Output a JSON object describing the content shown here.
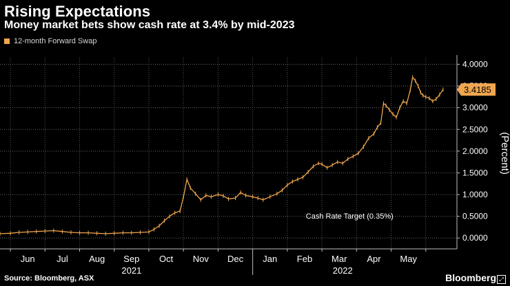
{
  "title": "Rising Expectations",
  "subtitle": "Money market bets show cash rate at 3.4% by mid-2023",
  "legend": {
    "label": "12-month Forward Swap",
    "color": "#f0a64f"
  },
  "source": "Source: Bloomberg, ASX",
  "brand": "Bloomberg",
  "brand_mark": "⤢",
  "chart_data": {
    "type": "line",
    "title": "Rising Expectations",
    "subtitle": "Money market bets show cash rate at 3.4% by mid-2023",
    "ylabel": "(Percent)",
    "xlabel": "",
    "ylim": [
      -0.25,
      4.15
    ],
    "yticks": [
      0.0,
      0.5,
      1.0,
      1.5,
      2.0,
      2.5,
      3.0,
      3.5,
      4.0
    ],
    "ytick_labels": [
      "0.0000",
      "0.5000",
      "1.0000",
      "1.5000",
      "2.0000",
      "2.5000",
      "3.0000",
      "3.5000",
      "4.0000"
    ],
    "xlim_months": [
      -0.3,
      11.9
    ],
    "month_labels": [
      {
        "label": "Jun",
        "x": 0.5
      },
      {
        "label": "Jul",
        "x": 1.5
      },
      {
        "label": "Aug",
        "x": 2.5
      },
      {
        "label": "Sep",
        "x": 3.5
      },
      {
        "label": "Oct",
        "x": 4.5
      },
      {
        "label": "Nov",
        "x": 5.5
      },
      {
        "label": "Dec",
        "x": 6.5
      },
      {
        "label": "Jan",
        "x": 7.5
      },
      {
        "label": "Feb",
        "x": 8.5
      },
      {
        "label": "Mar",
        "x": 9.5
      },
      {
        "label": "Apr",
        "x": 10.5
      },
      {
        "label": "May",
        "x": 11.5
      }
    ],
    "year_labels": [
      {
        "label": "2021",
        "x": 3.5
      },
      {
        "label": "2022",
        "x": 9.6
      }
    ],
    "year_divider_x": 7.0,
    "annotation": {
      "text": "Cash Rate Target (0.35%)",
      "x": 9.8,
      "y": 0.35
    },
    "last_value": {
      "text": "3.4185",
      "value": 3.4185
    },
    "grid": true,
    "legend_position": "top-left",
    "series": [
      {
        "name": "12-month Forward Swap",
        "color": "#f0a64f",
        "points": [
          [
            -0.3,
            0.1
          ],
          [
            0.0,
            0.11
          ],
          [
            0.25,
            0.13
          ],
          [
            0.5,
            0.14
          ],
          [
            0.75,
            0.15
          ],
          [
            1.0,
            0.16
          ],
          [
            1.25,
            0.17
          ],
          [
            1.5,
            0.15
          ],
          [
            1.75,
            0.13
          ],
          [
            2.0,
            0.12
          ],
          [
            2.25,
            0.12
          ],
          [
            2.5,
            0.11
          ],
          [
            2.75,
            0.1
          ],
          [
            3.0,
            0.11
          ],
          [
            3.25,
            0.12
          ],
          [
            3.5,
            0.12
          ],
          [
            3.75,
            0.13
          ],
          [
            4.0,
            0.14
          ],
          [
            4.15,
            0.2
          ],
          [
            4.3,
            0.28
          ],
          [
            4.45,
            0.4
          ],
          [
            4.6,
            0.5
          ],
          [
            4.75,
            0.58
          ],
          [
            4.9,
            0.62
          ],
          [
            5.0,
            0.95
          ],
          [
            5.1,
            1.35
          ],
          [
            5.2,
            1.15
          ],
          [
            5.35,
            1.02
          ],
          [
            5.5,
            0.88
          ],
          [
            5.65,
            0.98
          ],
          [
            5.8,
            0.95
          ],
          [
            6.0,
            1.0
          ],
          [
            6.15,
            0.97
          ],
          [
            6.3,
            0.9
          ],
          [
            6.5,
            0.92
          ],
          [
            6.65,
            1.05
          ],
          [
            6.8,
            0.98
          ],
          [
            7.0,
            0.95
          ],
          [
            7.15,
            0.92
          ],
          [
            7.3,
            0.88
          ],
          [
            7.5,
            0.95
          ],
          [
            7.7,
            1.02
          ],
          [
            7.85,
            1.1
          ],
          [
            8.0,
            1.22
          ],
          [
            8.15,
            1.3
          ],
          [
            8.3,
            1.35
          ],
          [
            8.45,
            1.4
          ],
          [
            8.6,
            1.52
          ],
          [
            8.75,
            1.65
          ],
          [
            8.9,
            1.72
          ],
          [
            9.0,
            1.7
          ],
          [
            9.15,
            1.62
          ],
          [
            9.3,
            1.68
          ],
          [
            9.45,
            1.75
          ],
          [
            9.6,
            1.72
          ],
          [
            9.75,
            1.82
          ],
          [
            9.9,
            1.88
          ],
          [
            10.05,
            1.95
          ],
          [
            10.2,
            2.1
          ],
          [
            10.35,
            2.3
          ],
          [
            10.5,
            2.4
          ],
          [
            10.6,
            2.55
          ],
          [
            10.7,
            2.65
          ],
          [
            10.78,
            3.1
          ],
          [
            10.85,
            3.05
          ],
          [
            10.95,
            2.95
          ],
          [
            11.05,
            2.85
          ],
          [
            11.15,
            2.78
          ],
          [
            11.25,
            3.0
          ],
          [
            11.35,
            3.15
          ],
          [
            11.45,
            3.1
          ],
          [
            11.55,
            3.4
          ],
          [
            11.62,
            3.7
          ],
          [
            11.7,
            3.62
          ],
          [
            11.78,
            3.5
          ],
          [
            11.85,
            3.35
          ],
          [
            11.92,
            3.28
          ],
          [
            12.0,
            3.25
          ],
          [
            12.1,
            3.22
          ],
          [
            12.2,
            3.15
          ],
          [
            12.3,
            3.2
          ],
          [
            12.4,
            3.3
          ],
          [
            12.5,
            3.4185
          ]
        ]
      }
    ]
  }
}
